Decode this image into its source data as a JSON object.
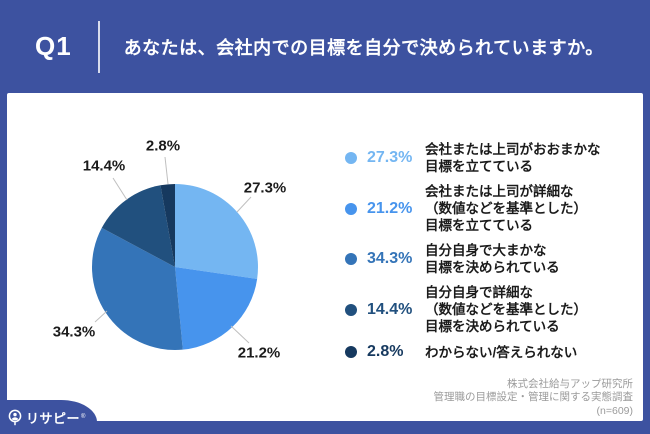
{
  "header": {
    "q_number": "Q1",
    "question": "あなたは、会社内での目標を自分で決められていますか。"
  },
  "chart_data": {
    "type": "pie",
    "title": "あなたは、会社内での目標を自分で決められていますか。",
    "labels": [
      "会社または上司がおおまかな目標を立てている",
      "会社または上司が詳細な（数値などを基準とした）目標を立てている",
      "自分自身で大まかな目標を決められている",
      "自分自身で詳細な（数値などを基準とした）目標を決められている",
      "わからない/答えられない"
    ],
    "values": [
      27.3,
      21.2,
      34.3,
      14.4,
      2.8
    ],
    "display_values": [
      "27.3%",
      "21.2%",
      "34.3%",
      "14.4%",
      "2.8%"
    ],
    "unit": "%",
    "colors": [
      "#74B6F2",
      "#4794ED",
      "#3474B8",
      "#21507E",
      "#16395F"
    ],
    "start_angle_deg": 0,
    "direction": "clockwise",
    "legend_position": "right",
    "sample_size": 609
  },
  "legend": {
    "items": [
      {
        "pct": "27.3%",
        "label": "会社または上司がおおまかな\n目標を立てている"
      },
      {
        "pct": "21.2%",
        "label": "会社または上司が詳細な\n（数値などを基準とした）\n目標を立てている"
      },
      {
        "pct": "34.3%",
        "label": "自分自身で大まかな\n目標を決められている"
      },
      {
        "pct": "14.4%",
        "label": "自分自身で詳細な\n（数値などを基準とした）\n目標を決められている"
      },
      {
        "pct": "2.8%",
        "label": "わからない/答えられない"
      }
    ]
  },
  "footer": {
    "source_lines": [
      "株式会社給与アップ研究所",
      "管理職の目標設定・管理に関する実態調査",
      "(n=609)"
    ]
  },
  "logo": {
    "text": "リサピー",
    "mark": "®"
  },
  "colors": {
    "brand_navy": "#3D52A0",
    "panel_bg": "#FFFFFF",
    "callout_text": "#1B1B1B",
    "footer_text": "#9B9B9B",
    "leader_line": "#BFBFBF"
  }
}
